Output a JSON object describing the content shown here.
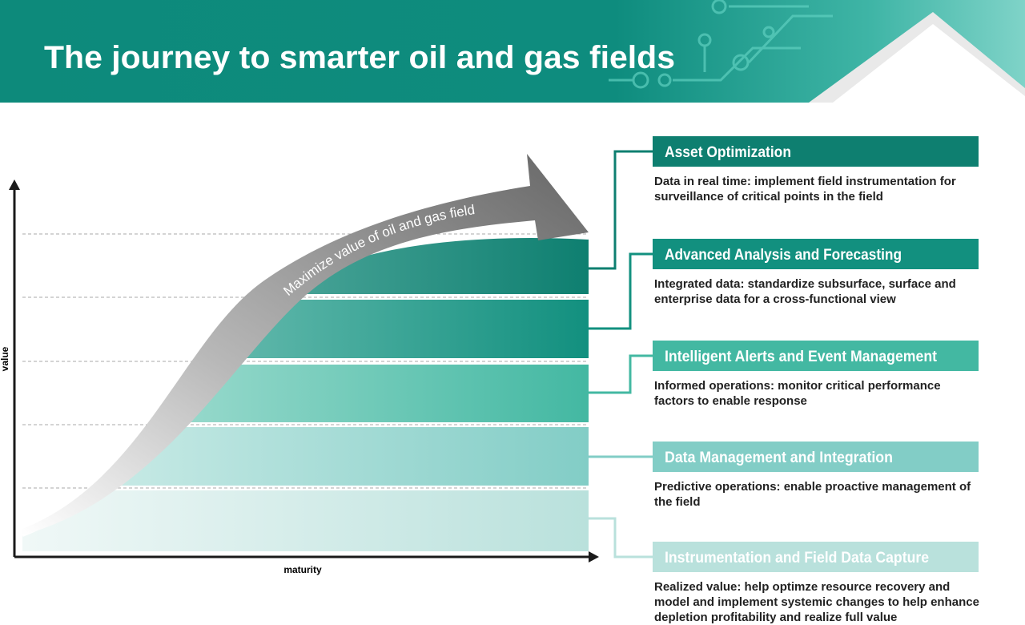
{
  "header": {
    "title": "The journey to smarter oil and gas fields"
  },
  "diagram": {
    "y_axis_label": "value",
    "x_axis_label": "maturity",
    "arrow_label": "Maximize value of oil and gas field",
    "stages": [
      {
        "title": "Asset Optimization",
        "description": "Data in real time: implement field instrumentation for surveillance of critical points in the field"
      },
      {
        "title": "Advanced Analysis and Forecasting",
        "description": "Integrated data: standardize subsurface, surface and enterprise data for a cross-functional view"
      },
      {
        "title": "Intelligent Alerts and Event Management",
        "description": "Informed operations: monitor critical performance factors to enable response"
      },
      {
        "title": "Data Management and Integration",
        "description": "Predictive operations: enable proactive management of the field"
      },
      {
        "title": "Instrumentation and Field Data Capture",
        "description": "Realized value: help optimze resource recovery and model and implement systemic changes to help enhance depletion profitability and realize full value"
      }
    ]
  }
}
